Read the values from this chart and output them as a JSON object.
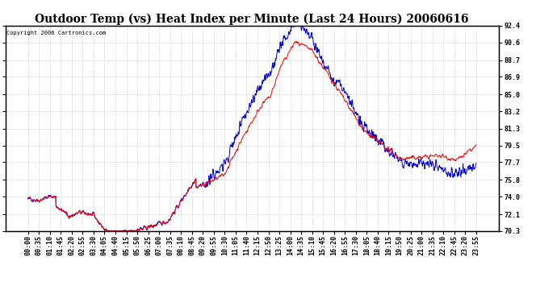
{
  "title": "Outdoor Temp (vs) Heat Index per Minute (Last 24 Hours) 20060616",
  "copyright": "Copyright 2006 Cartronics.com",
  "ylim": [
    70.3,
    92.4
  ],
  "yticks": [
    70.3,
    72.1,
    74.0,
    75.8,
    77.7,
    79.5,
    81.3,
    83.2,
    85.0,
    86.9,
    88.7,
    90.6,
    92.4
  ],
  "xtick_labels": [
    "00:00",
    "00:35",
    "01:10",
    "01:45",
    "02:20",
    "02:55",
    "03:30",
    "04:05",
    "04:40",
    "05:15",
    "05:50",
    "06:25",
    "07:00",
    "07:35",
    "08:10",
    "08:45",
    "09:20",
    "09:55",
    "10:30",
    "11:05",
    "11:40",
    "12:15",
    "12:50",
    "13:25",
    "14:00",
    "14:35",
    "15:10",
    "15:45",
    "16:20",
    "16:55",
    "17:30",
    "18:05",
    "18:40",
    "19:15",
    "19:50",
    "20:25",
    "21:00",
    "21:35",
    "22:10",
    "22:45",
    "23:20",
    "23:55"
  ],
  "color_temp": "#ff0000",
  "color_heat": "#0000cc",
  "bg_color": "#ffffff",
  "grid_color": "#aaaaaa",
  "title_fontsize": 10,
  "tick_fontsize": 6
}
